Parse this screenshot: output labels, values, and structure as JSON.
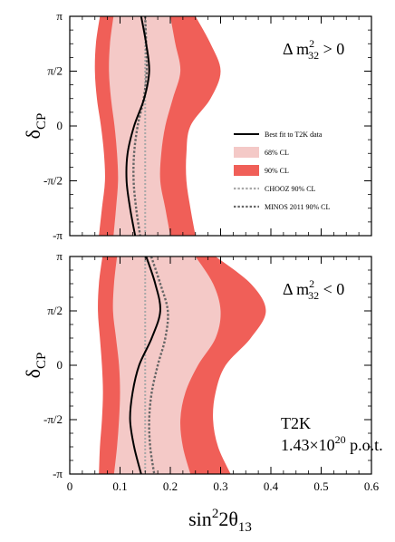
{
  "chart_data": {
    "type": "area",
    "xlabel": "sin²2θ₁₃",
    "x_ticks": [
      "0",
      "0.1",
      "0.2",
      "0.3",
      "0.4",
      "0.5",
      "0.6"
    ],
    "xlim": [
      0,
      0.6
    ],
    "ylim": [
      -3.14159,
      3.14159
    ],
    "y_ticks": [
      "π",
      "π/2",
      "0",
      "-π/2",
      "-π"
    ],
    "legend": {
      "position": "right",
      "entries": [
        {
          "label": "Best fit to T2K data",
          "style": "line",
          "color": "#000000"
        },
        {
          "label": "68% CL",
          "style": "fill",
          "color": "#f4c9c7"
        },
        {
          "label": "90% CL",
          "style": "fill",
          "color": "#f05f58"
        },
        {
          "label": "CHOOZ 90% CL",
          "style": "dotted",
          "color": "#a8a8a8"
        },
        {
          "label": "MINOS 2011 90% CL",
          "style": "dotted",
          "color": "#666666"
        }
      ]
    },
    "panels": [
      {
        "ylabel": "δCP",
        "annotation": "Δ m²32 > 0",
        "y_deltacp": [
          3.14159,
          2.35619,
          1.5708,
          0.7854,
          0,
          -0.7854,
          -1.5708,
          -2.35619,
          -3.14159
        ],
        "series": [
          {
            "name": "90% CL lower",
            "values": [
              0.06,
              0.052,
              0.05,
              0.054,
              0.062,
              0.068,
              0.07,
              0.064,
              0.058
            ]
          },
          {
            "name": "68% CL lower",
            "values": [
              0.087,
              0.08,
              0.078,
              0.082,
              0.089,
              0.094,
              0.096,
              0.092,
              0.087
            ]
          },
          {
            "name": "68% CL upper",
            "values": [
              0.2,
              0.21,
              0.22,
              0.205,
              0.19,
              0.182,
              0.18,
              0.19,
              0.2
            ]
          },
          {
            "name": "90% CL upper",
            "values": [
              0.25,
              0.28,
              0.3,
              0.28,
              0.24,
              0.232,
              0.232,
              0.24,
              0.25
            ]
          },
          {
            "name": "Best fit",
            "values": [
              0.142,
              0.152,
              0.158,
              0.148,
              0.128,
              0.115,
              0.113,
              0.12,
              0.13
            ]
          },
          {
            "name": "CHOOZ 90% CL",
            "values": [
              0.15,
              0.15,
              0.15,
              0.15,
              0.15,
              0.15,
              0.15,
              0.15,
              0.15
            ]
          },
          {
            "name": "MINOS 2011 90% CL",
            "values": [
              0.15,
              0.152,
              0.153,
              0.147,
              0.135,
              0.128,
              0.127,
              0.132,
              0.14
            ]
          }
        ]
      },
      {
        "ylabel": "δCP",
        "annotation": "Δ m²32 < 0",
        "annotation2_line1": "T2K",
        "annotation2_line2": "1.43×10²⁰ p.o.t.",
        "y_deltacp": [
          3.14159,
          2.35619,
          1.5708,
          0.7854,
          0,
          -0.7854,
          -1.5708,
          -2.35619,
          -3.14159
        ],
        "series": [
          {
            "name": "90% CL lower",
            "values": [
              0.065,
              0.058,
              0.056,
              0.06,
              0.064,
              0.066,
              0.064,
              0.06,
              0.058
            ]
          },
          {
            "name": "68% CL lower",
            "values": [
              0.094,
              0.088,
              0.086,
              0.092,
              0.098,
              0.1,
              0.098,
              0.094,
              0.088
            ]
          },
          {
            "name": "68% CL upper",
            "values": [
              0.25,
              0.285,
              0.3,
              0.29,
              0.255,
              0.23,
              0.22,
              0.225,
              0.24
            ]
          },
          {
            "name": "90% CL upper",
            "values": [
              0.29,
              0.36,
              0.39,
              0.36,
              0.31,
              0.29,
              0.285,
              0.295,
              0.32
            ]
          },
          {
            "name": "Best fit",
            "values": [
              0.152,
              0.17,
              0.18,
              0.163,
              0.138,
              0.125,
              0.12,
              0.128,
              0.142
            ]
          },
          {
            "name": "CHOOZ 90% CL",
            "values": [
              0.15,
              0.15,
              0.15,
              0.15,
              0.15,
              0.15,
              0.15,
              0.15,
              0.15
            ]
          },
          {
            "name": "MINOS 2011 90% CL",
            "values": [
              0.162,
              0.18,
              0.195,
              0.19,
              0.175,
              0.163,
              0.158,
              0.16,
              0.168
            ]
          }
        ]
      }
    ]
  }
}
